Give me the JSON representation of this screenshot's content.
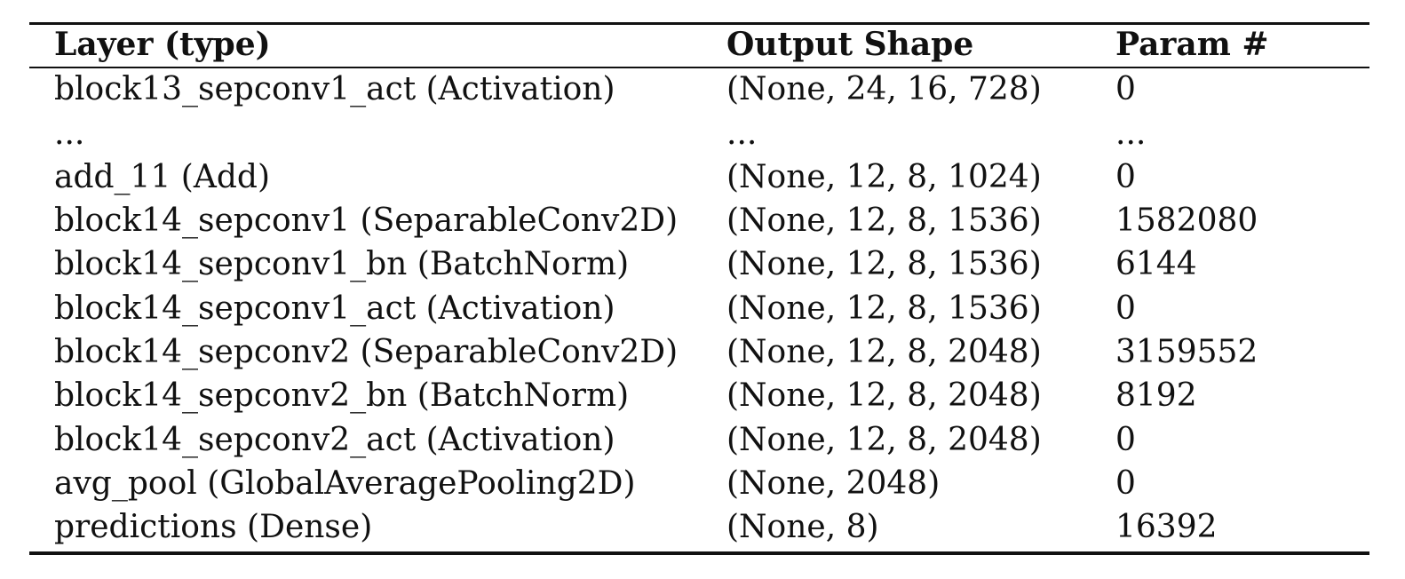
{
  "table": {
    "headers": [
      "Layer (type)",
      "Output Shape",
      "Param #"
    ],
    "rows": [
      [
        "block13_sepconv1_act (Activation)",
        "(None, 24, 16, 728)",
        "0"
      ],
      [
        "...",
        "...",
        "..."
      ],
      [
        "add_11 (Add)",
        "(None, 12, 8, 1024)",
        "0"
      ],
      [
        "block14_sepconv1 (SeparableConv2D)",
        "(None, 12, 8, 1536)",
        "1582080"
      ],
      [
        "block14_sepconv1_bn (BatchNorm)",
        "(None, 12, 8, 1536)",
        "6144"
      ],
      [
        "block14_sepconv1_act (Activation)",
        "(None, 12, 8, 1536)",
        "0"
      ],
      [
        "block14_sepconv2 (SeparableConv2D)",
        "(None, 12, 8, 2048)",
        "3159552"
      ],
      [
        "block14_sepconv2_bn (BatchNorm)",
        "(None, 12, 8, 2048)",
        "8192"
      ],
      [
        "block14_sepconv2_act (Activation)",
        "(None, 12, 8, 2048)",
        "0"
      ],
      [
        "avg_pool (GlobalAveragePooling2D)",
        "(None, 2048)",
        "0"
      ],
      [
        "predictions (Dense)",
        "(None, 8)",
        "16392"
      ]
    ]
  }
}
